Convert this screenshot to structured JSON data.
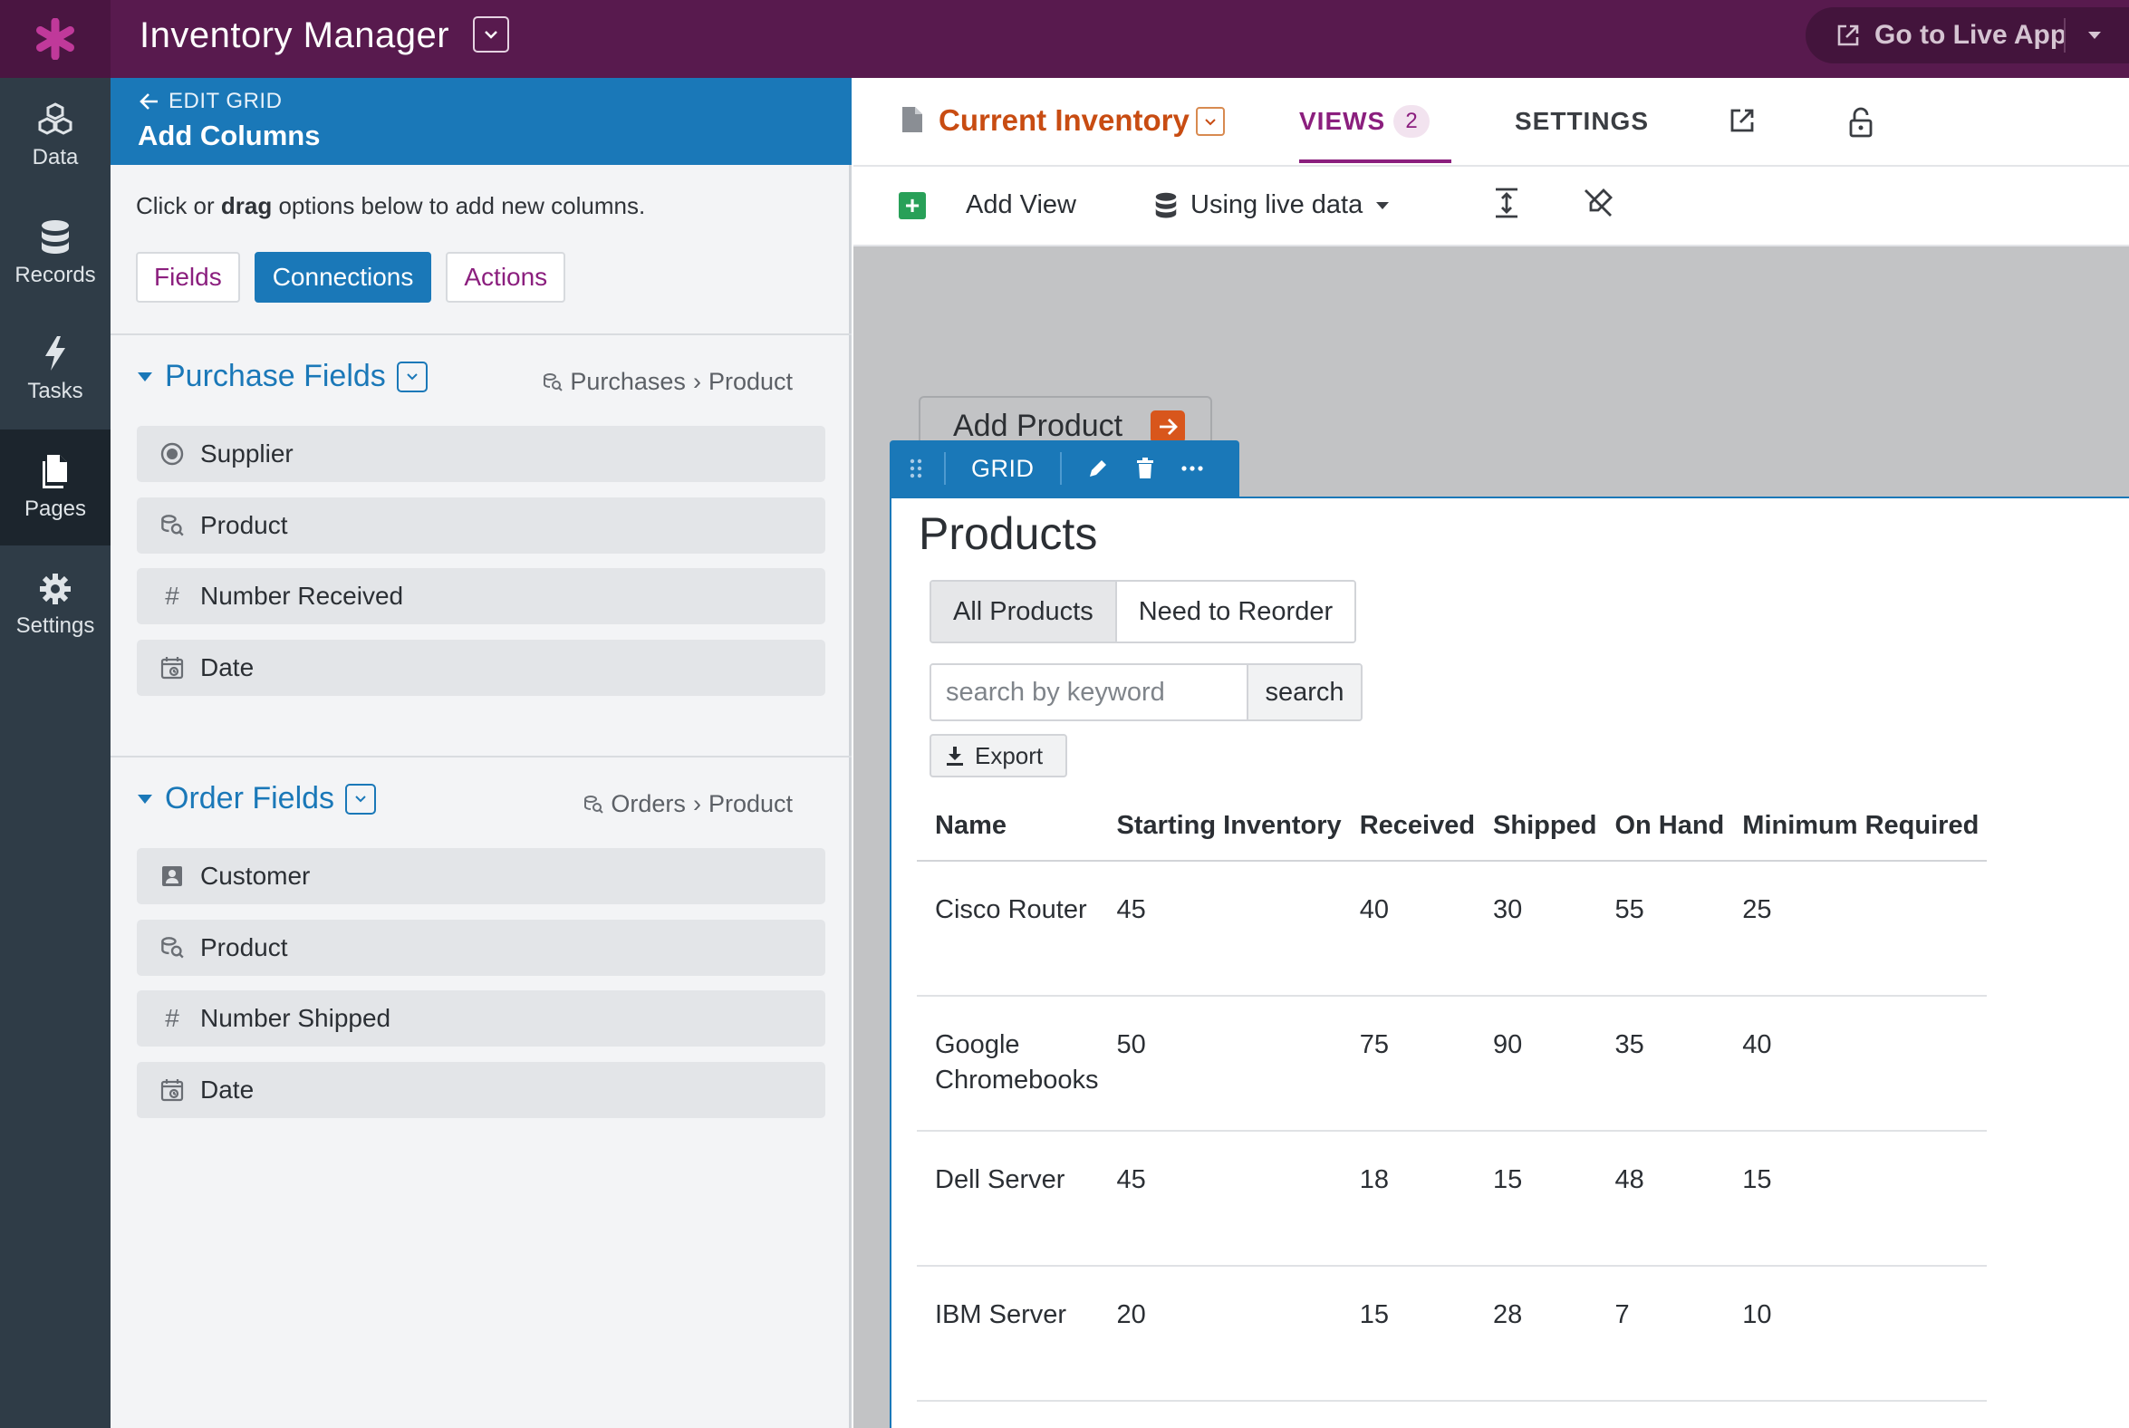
{
  "app": {
    "title": "Inventory Manager",
    "live_button": "Go to Live App"
  },
  "nav": [
    {
      "label": "Data",
      "icon": "cubes-icon"
    },
    {
      "label": "Records",
      "icon": "database-icon"
    },
    {
      "label": "Tasks",
      "icon": "bolt-icon"
    },
    {
      "label": "Pages",
      "icon": "pages-icon",
      "active": true
    },
    {
      "label": "Settings",
      "icon": "gear-icon"
    }
  ],
  "panel": {
    "back_label": "EDIT GRID",
    "title": "Add Columns",
    "intro_pre": "Click or ",
    "intro_bold": "drag",
    "intro_post": " options below to add new columns.",
    "tabs": [
      "Fields",
      "Connections",
      "Actions"
    ],
    "active_tab": "Connections",
    "sections": [
      {
        "title": "Purchase Fields",
        "path_from": "Purchases",
        "path_to": "Product",
        "fields": [
          {
            "label": "Supplier",
            "icon": "radio-icon"
          },
          {
            "label": "Product",
            "icon": "connection-icon"
          },
          {
            "label": "Number Received",
            "icon": "hash-icon"
          },
          {
            "label": "Date",
            "icon": "calendar-icon"
          }
        ]
      },
      {
        "title": "Order Fields",
        "path_from": "Orders",
        "path_to": "Product",
        "fields": [
          {
            "label": "Customer",
            "icon": "contact-icon"
          },
          {
            "label": "Product",
            "icon": "connection-icon"
          },
          {
            "label": "Number Shipped",
            "icon": "hash-icon"
          },
          {
            "label": "Date",
            "icon": "calendar-icon"
          }
        ]
      }
    ]
  },
  "header": {
    "page_name": "Current Inventory",
    "views_label": "VIEWS",
    "views_count": "2",
    "settings_label": "SETTINGS"
  },
  "toolbar": {
    "add_view": "Add View",
    "live_data": "Using live data"
  },
  "canvas": {
    "add_product": "Add Product",
    "grid_label": "GRID",
    "view_title": "Products",
    "filters": [
      "All Products",
      "Need to Reorder"
    ],
    "active_filter": "All Products",
    "search_placeholder": "search by keyword",
    "search_button": "search",
    "export_label": "Export",
    "columns": [
      "Name",
      "Starting Inventory",
      "Received",
      "Shipped",
      "On Hand",
      "Minimum Required"
    ],
    "rows": [
      [
        "Cisco Router",
        "45",
        "40",
        "30",
        "55",
        "25"
      ],
      [
        "Google Chromebooks",
        "50",
        "75",
        "90",
        "35",
        "40"
      ],
      [
        "Dell Server",
        "45",
        "18",
        "15",
        "48",
        "15"
      ],
      [
        "IBM Server",
        "20",
        "15",
        "28",
        "7",
        "10"
      ]
    ]
  },
  "colors": {
    "brand_purple": "#581a4e",
    "accent_blue": "#1a78b8",
    "accent_orange": "#c84c12",
    "nav_dark": "#2f3c47"
  }
}
